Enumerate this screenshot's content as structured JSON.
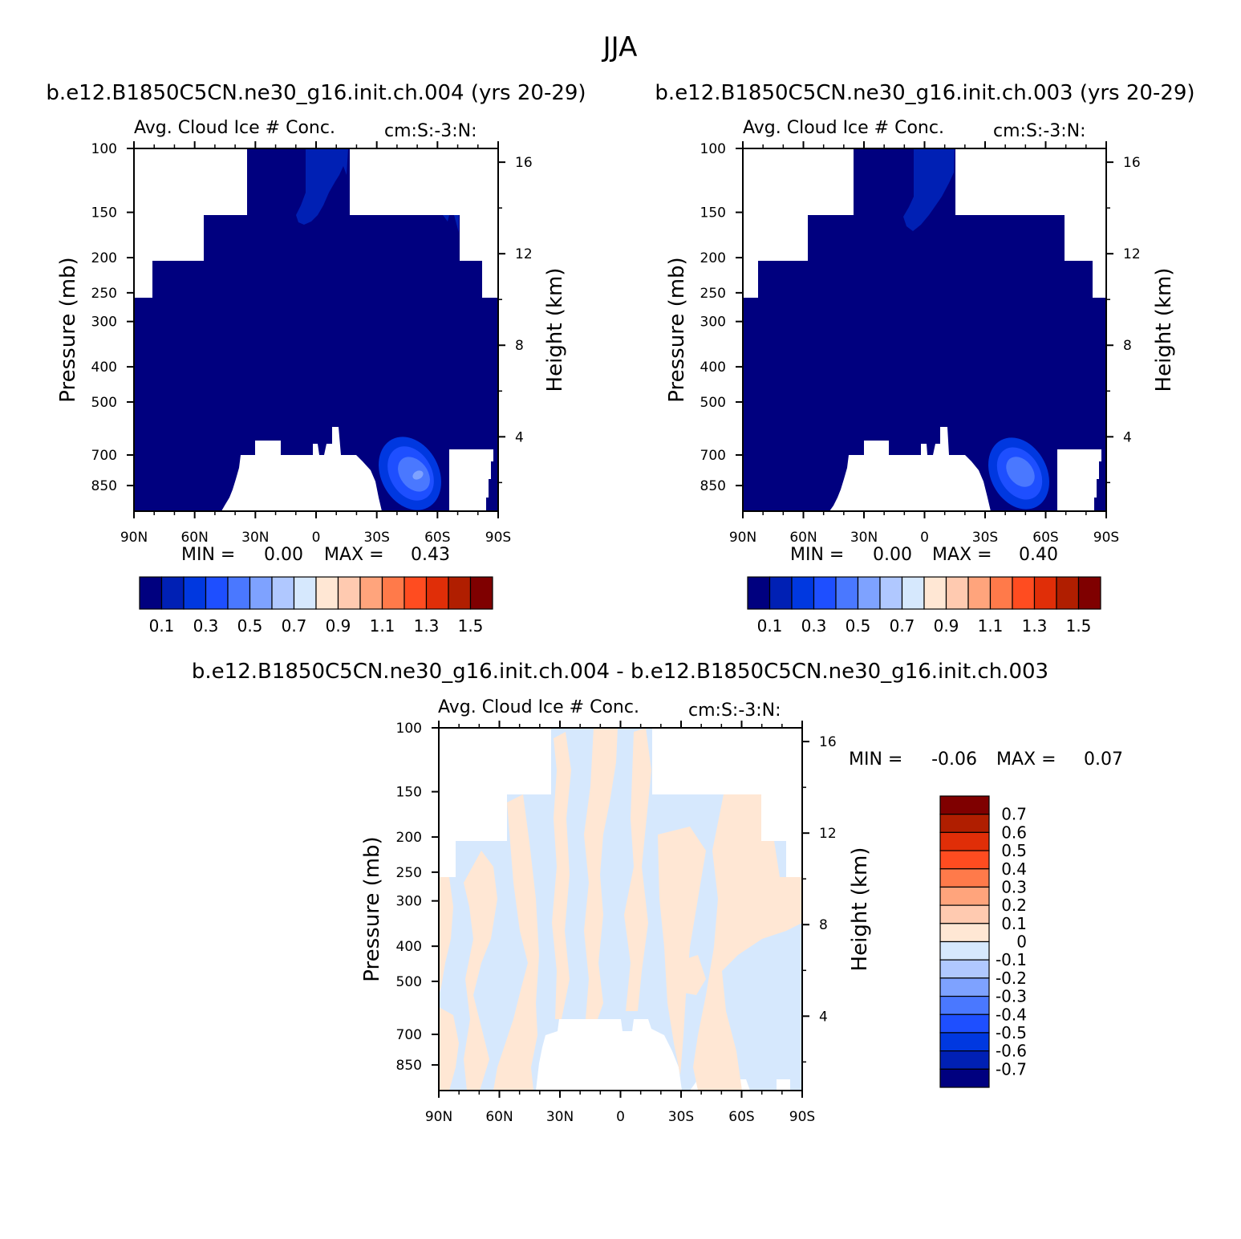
{
  "figure": {
    "title": "JJA",
    "top_left_caption": "b.e12.B1850C5CN.ne30_g16.init.ch.004 (yrs 20-29)",
    "top_right_caption": "b.e12.B1850C5CN.ne30_g16.init.ch.003 (yrs 20-29)",
    "bottom_caption": "b.e12.B1850C5CN.ne30_g16.init.ch.004 - b.e12.B1850C5CN.ne30_g16.init.ch.003"
  },
  "colors": {
    "background": "#ffffff",
    "level_colors": [
      "#00007f",
      "#0020b4",
      "#0038e0",
      "#1e4fff",
      "#4a78ff",
      "#7ea2ff",
      "#b0c8ff",
      "#d6e8fd",
      "#ffe7d4",
      "#ffcab0",
      "#ffa47c",
      "#ff7a4a",
      "#ff4c20",
      "#e02e08",
      "#b01e00",
      "#7f0000"
    ],
    "diff_colors": [
      "#00007f",
      "#0020b4",
      "#0038e0",
      "#1e4fff",
      "#4a78ff",
      "#7ea2ff",
      "#b0c8ff",
      "#d6e8fd",
      "#ffe7d4",
      "#ffcab0",
      "#ffa47c",
      "#ff7a4a",
      "#ff4c20",
      "#e02e08",
      "#b01e00",
      "#7f0000"
    ]
  },
  "chart_data": [
    {
      "type": "heatmap",
      "panel": "top-left",
      "left_title": "Avg. Cloud Ice # Conc.",
      "right_title": "cm:S:-3:N:",
      "ylabel": "Pressure (mb)",
      "ylabel_right": "Height (km)",
      "x_ticks": [
        "90N",
        "60N",
        "30N",
        "0",
        "30S",
        "60S",
        "90S"
      ],
      "x_tick_values": [
        90,
        60,
        30,
        0,
        -30,
        -60,
        -90
      ],
      "y_ticks": [
        "100",
        "150",
        "200",
        "250",
        "300",
        "400",
        "500",
        "700",
        "850"
      ],
      "y_tick_values": [
        100,
        150,
        200,
        250,
        300,
        400,
        500,
        700,
        850
      ],
      "y_right_ticks": [
        "16",
        "12",
        "8",
        "4"
      ],
      "y_right_tick_values": [
        16,
        12,
        8,
        4
      ],
      "ylim": [
        100,
        1000
      ],
      "y_scale": "log-pressure",
      "stats": {
        "min_label": "MIN =",
        "min_value": "0.00",
        "max_label": "MAX =",
        "max_value": "0.43"
      },
      "colorbar": {
        "orientation": "horizontal",
        "labels": [
          "0.1",
          "0.3",
          "0.5",
          "0.7",
          "0.9",
          "1.1",
          "1.3",
          "1.5"
        ],
        "levels": [
          0.1,
          0.2,
          0.3,
          0.4,
          0.5,
          0.6,
          0.7,
          0.8,
          0.9,
          1.0,
          1.1,
          1.2,
          1.3,
          1.4,
          1.5
        ]
      },
      "field_summary": {
        "min": 0.0,
        "max": 0.43,
        "peak_lat": -50,
        "peak_pressure": 750
      }
    },
    {
      "type": "heatmap",
      "panel": "top-right",
      "left_title": "Avg. Cloud Ice # Conc.",
      "right_title": "cm:S:-3:N:",
      "ylabel": "Pressure (mb)",
      "ylabel_right": "Height (km)",
      "x_ticks": [
        "90N",
        "60N",
        "30N",
        "0",
        "30S",
        "60S",
        "90S"
      ],
      "x_tick_values": [
        90,
        60,
        30,
        0,
        -30,
        -60,
        -90
      ],
      "y_ticks": [
        "100",
        "150",
        "200",
        "250",
        "300",
        "400",
        "500",
        "700",
        "850"
      ],
      "y_tick_values": [
        100,
        150,
        200,
        250,
        300,
        400,
        500,
        700,
        850
      ],
      "y_right_ticks": [
        "16",
        "12",
        "8",
        "4"
      ],
      "y_right_tick_values": [
        16,
        12,
        8,
        4
      ],
      "ylim": [
        100,
        1000
      ],
      "y_scale": "log-pressure",
      "stats": {
        "min_label": "MIN =",
        "min_value": "0.00",
        "max_label": "MAX =",
        "max_value": "0.40"
      },
      "colorbar": {
        "orientation": "horizontal",
        "labels": [
          "0.1",
          "0.3",
          "0.5",
          "0.7",
          "0.9",
          "1.1",
          "1.3",
          "1.5"
        ],
        "levels": [
          0.1,
          0.2,
          0.3,
          0.4,
          0.5,
          0.6,
          0.7,
          0.8,
          0.9,
          1.0,
          1.1,
          1.2,
          1.3,
          1.4,
          1.5
        ]
      },
      "field_summary": {
        "min": 0.0,
        "max": 0.4,
        "peak_lat": -50,
        "peak_pressure": 750
      }
    },
    {
      "type": "heatmap",
      "panel": "bottom-difference",
      "left_title": "Avg. Cloud Ice # Conc.",
      "right_title": "cm:S:-3:N:",
      "ylabel": "Pressure (mb)",
      "ylabel_right": "Height (km)",
      "x_ticks": [
        "90N",
        "60N",
        "30N",
        "0",
        "30S",
        "60S",
        "90S"
      ],
      "x_tick_values": [
        90,
        60,
        30,
        0,
        -30,
        -60,
        -90
      ],
      "y_ticks": [
        "100",
        "150",
        "200",
        "250",
        "300",
        "400",
        "500",
        "700",
        "850"
      ],
      "y_tick_values": [
        100,
        150,
        200,
        250,
        300,
        400,
        500,
        700,
        850
      ],
      "y_right_ticks": [
        "16",
        "12",
        "8",
        "4"
      ],
      "y_right_tick_values": [
        16,
        12,
        8,
        4
      ],
      "ylim": [
        100,
        1000
      ],
      "y_scale": "log-pressure",
      "stats": {
        "min_label": "MIN =",
        "min_value": "-0.06",
        "max_label": "MAX =",
        "max_value": "0.07"
      },
      "colorbar": {
        "orientation": "vertical",
        "labels": [
          "0.7",
          "0.6",
          "0.5",
          "0.4",
          "0.3",
          "0.2",
          "0.1",
          "0",
          "-0.1",
          "-0.2",
          "-0.3",
          "-0.4",
          "-0.5",
          "-0.6",
          "-0.7"
        ],
        "levels": [
          0.7,
          0.6,
          0.5,
          0.4,
          0.3,
          0.2,
          0.1,
          0,
          -0.1,
          -0.2,
          -0.3,
          -0.4,
          -0.5,
          -0.6,
          -0.7
        ]
      },
      "field_summary": {
        "min": -0.06,
        "max": 0.07
      }
    }
  ]
}
